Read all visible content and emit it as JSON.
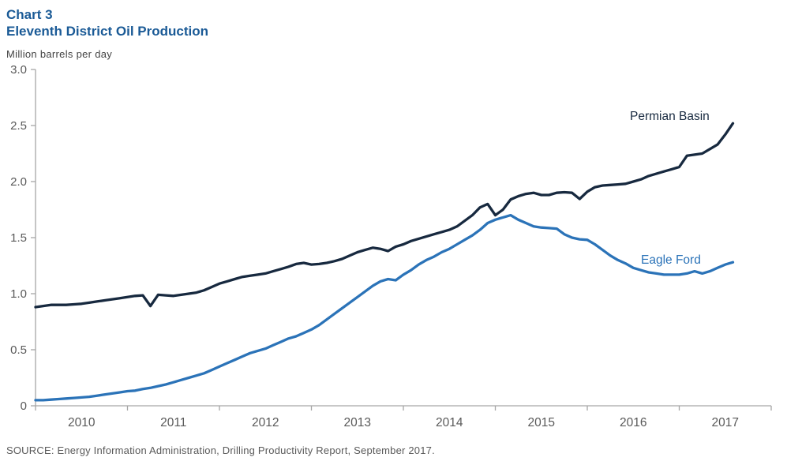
{
  "header": {
    "chart_label": "Chart 3",
    "title": "Eleventh District Oil Production",
    "units_label": "Million barrels per day"
  },
  "source_line": "SOURCE: Energy Information Administration, Drilling Productivity Report, September 2017.",
  "colors": {
    "title_blue": "#1a5a96",
    "permian_line": "#17293f",
    "eagle_ford_line": "#2b73b8",
    "axis_gray": "#a6a6a6",
    "tick_text_gray": "#595959"
  },
  "chart_data": {
    "type": "line",
    "title": "Eleventh District Oil Production",
    "ylabel": "Million barrels per day",
    "ylim": [
      0,
      3.0
    ],
    "y_ticks": [
      0,
      0.5,
      1.0,
      1.5,
      2.0,
      2.5,
      3.0
    ],
    "y_tick_labels": [
      "0",
      "0.5",
      "1.0",
      "1.5",
      "2.0",
      "2.5",
      "3.0"
    ],
    "x_year_labels": [
      "2010",
      "2011",
      "2012",
      "2013",
      "2014",
      "2015",
      "2016",
      "2017"
    ],
    "x_start": "2010-01",
    "x_end": "2017-08",
    "frequency": "monthly",
    "grid": false,
    "legend_position": "inline-labels",
    "series": [
      {
        "name": "Permian Basin",
        "color": "#17293f",
        "values": [
          0.88,
          0.89,
          0.9,
          0.9,
          0.9,
          0.905,
          0.91,
          0.92,
          0.93,
          0.94,
          0.95,
          0.96,
          0.97,
          0.98,
          0.985,
          0.89,
          0.99,
          0.985,
          0.98,
          0.99,
          1.0,
          1.01,
          1.03,
          1.06,
          1.09,
          1.11,
          1.13,
          1.15,
          1.16,
          1.17,
          1.18,
          1.2,
          1.22,
          1.24,
          1.265,
          1.275,
          1.26,
          1.265,
          1.275,
          1.29,
          1.31,
          1.34,
          1.37,
          1.39,
          1.41,
          1.4,
          1.38,
          1.42,
          1.44,
          1.47,
          1.49,
          1.51,
          1.53,
          1.55,
          1.57,
          1.6,
          1.65,
          1.7,
          1.77,
          1.8,
          1.7,
          1.75,
          1.84,
          1.87,
          1.89,
          1.9,
          1.88,
          1.88,
          1.9,
          1.905,
          1.9,
          1.845,
          1.91,
          1.95,
          1.965,
          1.97,
          1.975,
          1.98,
          2.0,
          2.02,
          2.05,
          2.07,
          2.09,
          2.11,
          2.13,
          2.23,
          2.24,
          2.25,
          2.29,
          2.33,
          2.42,
          2.52
        ]
      },
      {
        "name": "Eagle Ford",
        "color": "#2b73b8",
        "values": [
          0.05,
          0.05,
          0.055,
          0.06,
          0.065,
          0.07,
          0.075,
          0.08,
          0.09,
          0.1,
          0.11,
          0.12,
          0.13,
          0.135,
          0.15,
          0.16,
          0.175,
          0.19,
          0.21,
          0.23,
          0.25,
          0.27,
          0.29,
          0.32,
          0.35,
          0.38,
          0.41,
          0.44,
          0.47,
          0.49,
          0.51,
          0.54,
          0.57,
          0.6,
          0.62,
          0.65,
          0.68,
          0.72,
          0.77,
          0.82,
          0.87,
          0.92,
          0.97,
          1.02,
          1.07,
          1.11,
          1.13,
          1.12,
          1.17,
          1.21,
          1.26,
          1.3,
          1.33,
          1.37,
          1.4,
          1.44,
          1.48,
          1.52,
          1.57,
          1.63,
          1.66,
          1.68,
          1.7,
          1.66,
          1.63,
          1.6,
          1.59,
          1.585,
          1.58,
          1.53,
          1.5,
          1.485,
          1.48,
          1.44,
          1.39,
          1.34,
          1.3,
          1.27,
          1.23,
          1.21,
          1.19,
          1.18,
          1.17,
          1.17,
          1.17,
          1.18,
          1.2,
          1.18,
          1.2,
          1.23,
          1.26,
          1.28
        ]
      }
    ]
  }
}
